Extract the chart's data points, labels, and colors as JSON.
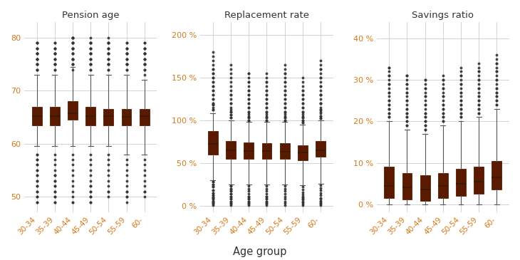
{
  "age_groups": [
    "30-34",
    "35-39",
    "40-44",
    "45-49",
    "50-54",
    "55-59",
    "60-"
  ],
  "titles": [
    "Pension age",
    "Replacement rate",
    "Savings ratio"
  ],
  "xlabel": "Age group",
  "box_color": "#C8430A",
  "median_color": "#3A1A00",
  "whisker_color": "#555555",
  "cap_color": "#555555",
  "flier_color": "#333333",
  "grid_color": "#CCCCCC",
  "tick_color": "#D4791A",
  "title_color": "#333333",
  "xlabel_color": "#333333",
  "bg_color": "#FFFFFF",
  "pension_age": {
    "q1": [
      63.5,
      63.5,
      64.5,
      63.5,
      63.5,
      63.5,
      63.5
    ],
    "median": [
      65.2,
      65.2,
      65.8,
      65.2,
      65.2,
      65.0,
      65.2
    ],
    "q3": [
      67.0,
      67.0,
      68.0,
      67.0,
      66.5,
      66.5,
      66.5
    ],
    "whislo": [
      59.5,
      59.5,
      59.5,
      59.5,
      59.5,
      58.0,
      58.0
    ],
    "whishi": [
      73.0,
      73.0,
      74.5,
      73.0,
      73.0,
      73.0,
      72.0
    ],
    "fliers_upper": [
      [
        74,
        75,
        75,
        76,
        76,
        77,
        77,
        78,
        79,
        79,
        78,
        77,
        76,
        75,
        74,
        74,
        75,
        76,
        77,
        78,
        79
      ],
      [
        74,
        75,
        75,
        76,
        77,
        77,
        78,
        79,
        79,
        78,
        77,
        76,
        75,
        74,
        75,
        76,
        77,
        78
      ],
      [
        75,
        76,
        76,
        77,
        78,
        78,
        79,
        79,
        80,
        80,
        79,
        78,
        77,
        76,
        75,
        74,
        75,
        76,
        77,
        78,
        79,
        80,
        80
      ],
      [
        74,
        75,
        75,
        76,
        77,
        77,
        78,
        79,
        79,
        78,
        77,
        76,
        75,
        74,
        75,
        76,
        77,
        78,
        79,
        79,
        80
      ],
      [
        74,
        75,
        75,
        76,
        77,
        77,
        78,
        79,
        79,
        78,
        77,
        76,
        75,
        74,
        75,
        76,
        77,
        78,
        79,
        79,
        80
      ],
      [
        74,
        75,
        75,
        76,
        77,
        77,
        78,
        79,
        79,
        78,
        77,
        76,
        75,
        74,
        75,
        76,
        77,
        78
      ],
      [
        73,
        74,
        75,
        75,
        76,
        77,
        77,
        78,
        79,
        79,
        78,
        77,
        76,
        75,
        74,
        75,
        76,
        77,
        78
      ]
    ],
    "fliers_lower": [
      [
        58,
        57,
        56,
        55,
        54,
        53,
        52,
        51,
        50,
        49,
        49,
        50,
        51,
        52,
        53,
        54,
        55,
        56,
        57,
        58
      ],
      [
        58,
        57,
        56,
        55,
        54,
        53,
        52,
        51,
        50,
        49,
        49,
        50,
        51,
        52,
        53,
        54
      ],
      [
        58,
        57,
        56,
        55,
        54,
        53,
        52,
        51,
        50,
        49,
        49
      ],
      [
        58,
        57,
        56,
        55,
        54,
        53,
        52,
        51,
        50,
        49,
        49,
        50,
        51,
        52
      ],
      [
        58,
        57,
        56,
        55,
        54,
        53,
        52,
        51,
        50,
        51
      ],
      [
        57,
        56,
        55,
        54,
        53,
        52,
        51,
        50,
        49,
        50,
        51
      ],
      [
        57,
        56,
        55,
        54,
        53,
        52,
        51,
        50,
        51
      ]
    ],
    "ylim": [
      47,
      83
    ],
    "yticks": [
      50,
      60,
      70,
      80
    ],
    "yticklabels": [
      "50",
      "60",
      "70",
      "80"
    ]
  },
  "replacement_rate": {
    "q1": [
      60.0,
      55.0,
      55.0,
      55.0,
      55.0,
      53.0,
      57.0
    ],
    "median": [
      72.0,
      65.0,
      64.0,
      64.0,
      63.0,
      62.0,
      65.0
    ],
    "q3": [
      87.0,
      76.0,
      74.0,
      73.0,
      73.0,
      71.0,
      76.0
    ],
    "whislo": [
      30.0,
      25.0,
      25.0,
      25.0,
      25.0,
      24.0,
      26.0
    ],
    "whishi": [
      108.0,
      100.0,
      98.0,
      98.0,
      98.0,
      95.0,
      100.0
    ],
    "fliers_upper": [
      [
        112,
        115,
        118,
        120,
        125,
        130,
        135,
        140,
        145,
        150,
        155,
        160,
        165,
        170,
        175,
        180,
        155,
        145,
        135,
        125,
        118,
        112,
        120,
        130,
        140,
        150,
        160
      ],
      [
        103,
        106,
        110,
        115,
        120,
        125,
        130,
        135,
        140,
        145,
        150,
        155,
        160,
        165,
        130,
        120,
        110,
        103,
        106,
        112
      ],
      [
        100,
        103,
        107,
        110,
        115,
        120,
        125,
        130,
        135,
        140,
        145,
        150,
        155,
        130,
        120,
        110,
        103,
        100,
        105,
        115,
        125,
        135,
        145,
        155
      ],
      [
        100,
        103,
        107,
        110,
        115,
        120,
        125,
        130,
        135,
        140,
        145,
        150,
        155,
        130,
        120,
        110,
        103,
        100,
        105,
        115,
        125,
        135,
        145
      ],
      [
        100,
        103,
        107,
        110,
        115,
        120,
        125,
        130,
        135,
        140,
        145,
        150,
        155,
        160,
        130,
        120,
        110,
        103,
        100,
        105,
        115,
        125,
        135,
        145,
        155,
        165
      ],
      [
        97,
        100,
        103,
        107,
        110,
        115,
        120,
        125,
        130,
        135,
        140,
        145,
        150,
        130,
        120,
        110,
        103,
        97,
        100,
        105,
        115,
        125,
        135
      ],
      [
        102,
        105,
        108,
        112,
        115,
        120,
        125,
        130,
        135,
        140,
        145,
        150,
        155,
        160,
        165,
        170,
        130,
        120,
        110,
        102,
        105,
        112,
        120,
        130,
        140,
        150,
        160
      ]
    ],
    "fliers_lower": [
      [
        28,
        25,
        22,
        18,
        15,
        12,
        10,
        8,
        5,
        3,
        1,
        2,
        4,
        6,
        8,
        10,
        12,
        15,
        18,
        22,
        25,
        28
      ],
      [
        23,
        20,
        17,
        14,
        11,
        8,
        5,
        2,
        1,
        3,
        5,
        8,
        11,
        14,
        17,
        20,
        23
      ],
      [
        23,
        20,
        17,
        14,
        11,
        8,
        5,
        2,
        1,
        3,
        5,
        8,
        11
      ],
      [
        23,
        20,
        17,
        14,
        11,
        8,
        5,
        2,
        1,
        3,
        5,
        8,
        11
      ],
      [
        23,
        20,
        17,
        14,
        11,
        8,
        5,
        3,
        1
      ],
      [
        22,
        19,
        16,
        13,
        10,
        7,
        4,
        1,
        2,
        5,
        8,
        11
      ],
      [
        24,
        21,
        18,
        15,
        12,
        9,
        6,
        3,
        1,
        2,
        5,
        8
      ]
    ],
    "ylim": [
      -8,
      215
    ],
    "yticks": [
      0,
      50,
      100,
      150,
      200
    ],
    "yticklabels": [
      "0 %",
      "50 %",
      "100 %",
      "150 %",
      "200 %"
    ]
  },
  "savings_ratio": {
    "q1": [
      1.5,
      1.2,
      0.8,
      1.5,
      2.0,
      2.5,
      3.5
    ],
    "median": [
      4.5,
      4.0,
      3.5,
      4.5,
      5.0,
      5.5,
      6.5
    ],
    "q3": [
      9.0,
      7.5,
      7.0,
      7.5,
      8.5,
      9.0,
      10.5
    ],
    "whislo": [
      0.0,
      0.0,
      0.0,
      0.0,
      0.0,
      0.0,
      0.0
    ],
    "whishi": [
      20.0,
      18.0,
      17.0,
      19.0,
      20.0,
      21.0,
      23.0
    ],
    "fliers_upper": [
      [
        21,
        22,
        23,
        24,
        25,
        26,
        27,
        28,
        29,
        30,
        31,
        32,
        33,
        24,
        22,
        21,
        23,
        25,
        27,
        29,
        31,
        33
      ],
      [
        19,
        20,
        21,
        22,
        23,
        24,
        25,
        26,
        27,
        28,
        29,
        30,
        31,
        22,
        20,
        19,
        21,
        23,
        25,
        27,
        29,
        31
      ],
      [
        18,
        19,
        20,
        21,
        22,
        23,
        24,
        25,
        26,
        27,
        28,
        29,
        30,
        21,
        19,
        18,
        20,
        22,
        24,
        26,
        28,
        30
      ],
      [
        20,
        21,
        22,
        23,
        24,
        25,
        26,
        27,
        28,
        29,
        30,
        31,
        23,
        21,
        20,
        22,
        24,
        26,
        28,
        30
      ],
      [
        21,
        22,
        23,
        24,
        25,
        26,
        27,
        28,
        29,
        30,
        31,
        32,
        24,
        22,
        21,
        23,
        25,
        27,
        29,
        31,
        33
      ],
      [
        22,
        23,
        24,
        25,
        26,
        27,
        28,
        29,
        30,
        31,
        32,
        33,
        25,
        23,
        22,
        24,
        26,
        28,
        30,
        32,
        34
      ],
      [
        24,
        25,
        26,
        27,
        28,
        29,
        30,
        31,
        32,
        33,
        34,
        35,
        27,
        25,
        24,
        26,
        28,
        30,
        32,
        34,
        36
      ]
    ],
    "fliers_lower": [
      [],
      [],
      [],
      [],
      [],
      [],
      []
    ],
    "ylim": [
      -2,
      44
    ],
    "yticks": [
      0,
      10,
      20,
      30,
      40
    ],
    "yticklabels": [
      "0 %",
      "10 %",
      "20 %",
      "30 %",
      "40 %"
    ]
  }
}
